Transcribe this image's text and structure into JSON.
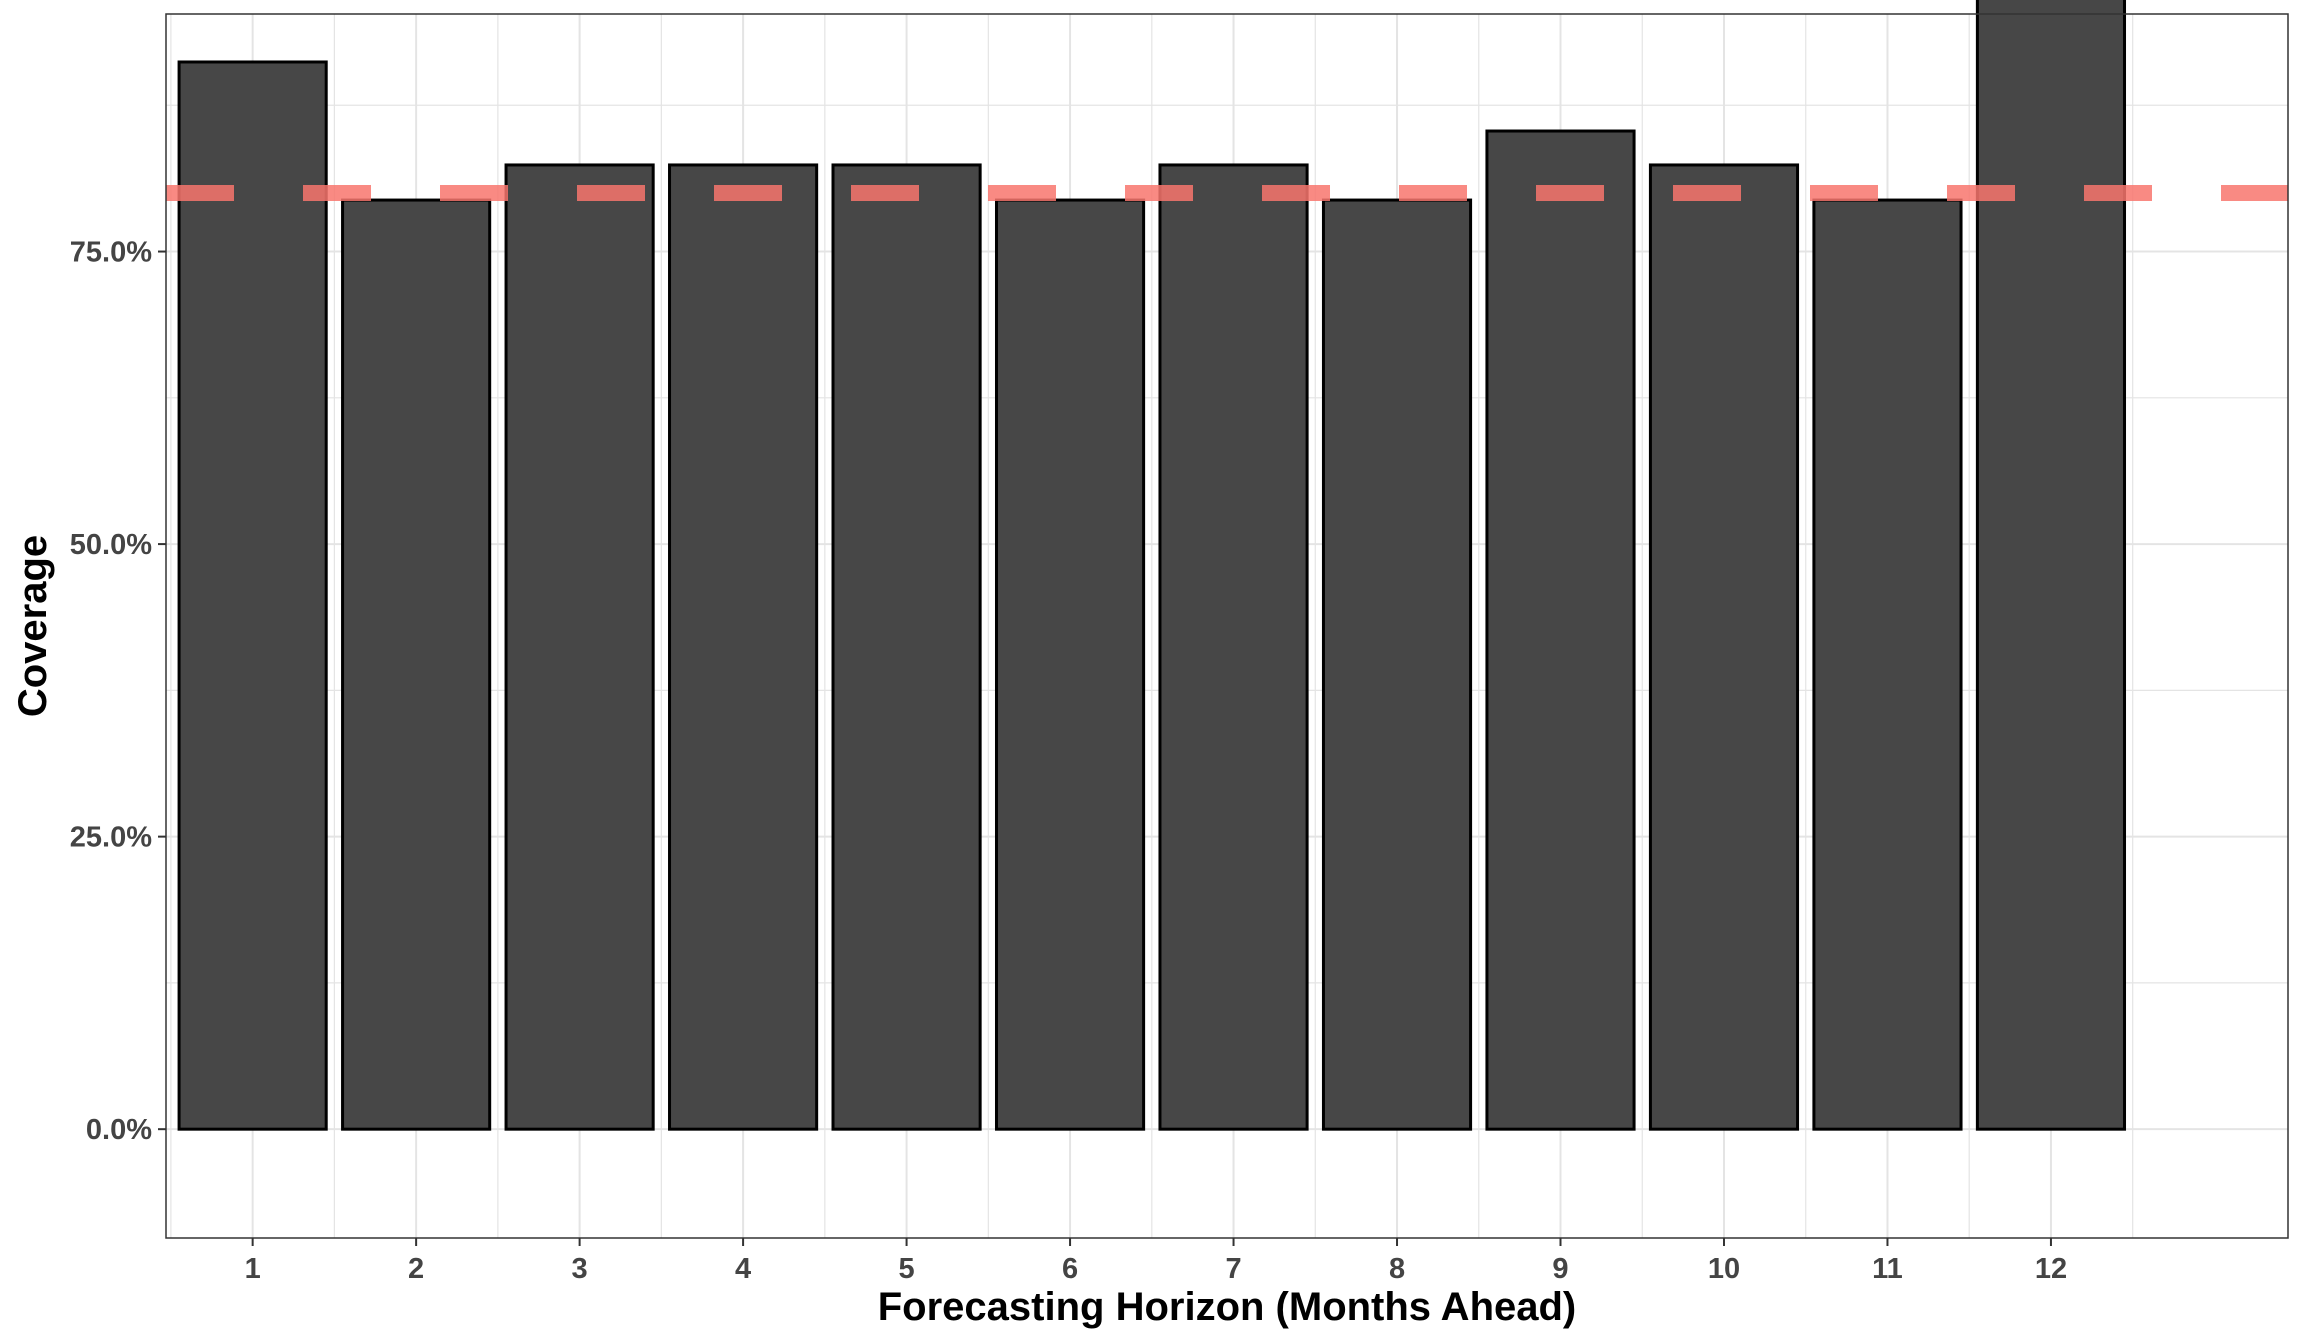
{
  "chart_data": {
    "type": "bar",
    "title": "",
    "xlabel": "Forecasting Horizon (Months Ahead)",
    "ylabel": "Coverage",
    "categories": [
      "1",
      "2",
      "3",
      "4",
      "5",
      "6",
      "7",
      "8",
      "9",
      "10",
      "11",
      "12"
    ],
    "values": [
      0.912,
      0.794,
      0.824,
      0.824,
      0.824,
      0.794,
      0.824,
      0.794,
      0.853,
      0.824,
      0.794,
      0.971
    ],
    "reference_line": {
      "value": 0.8,
      "style": "dashed",
      "color": "#f8766d"
    },
    "ylim": [
      -0.093,
      0.953
    ],
    "y_ticks": [
      0.0,
      0.25,
      0.5,
      0.75
    ],
    "y_tick_labels": [
      "0.0%",
      "25.0%",
      "50.0%",
      "75.0%"
    ],
    "grid": true,
    "colors": {
      "bar_fill": "#474747",
      "bar_stroke": "#000000",
      "grid": "#e4e4e4",
      "reference_line": "#f8766d",
      "panel_border": "#333333"
    }
  }
}
